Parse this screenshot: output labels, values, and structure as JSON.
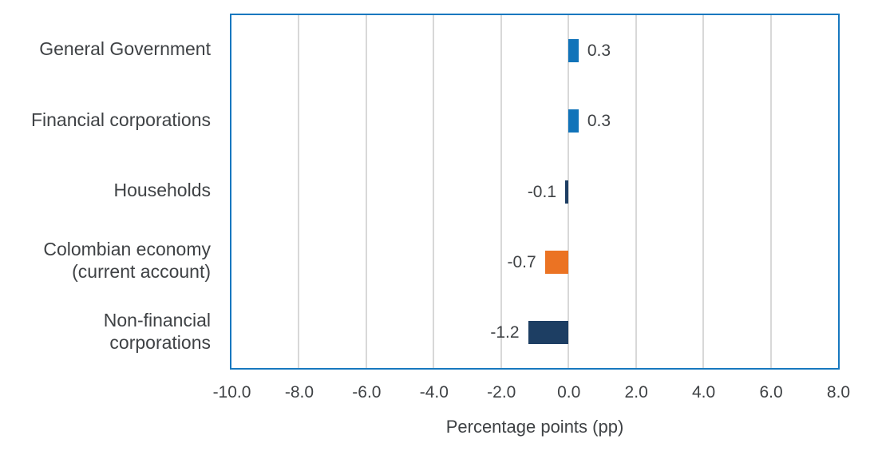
{
  "chart_data": {
    "type": "bar",
    "orientation": "horizontal",
    "title": "",
    "categories": [
      "General Government",
      "Financial corporations",
      "Households",
      "Colombian economy\n(current account)",
      "Non-financial\ncorporations"
    ],
    "values": [
      0.3,
      0.3,
      -0.1,
      -0.7,
      -1.2
    ],
    "value_labels": [
      "0.3",
      "0.3",
      "-0.1",
      "-0.7",
      "-1.2"
    ],
    "bar_colors": [
      "#1073b9",
      "#1073b9",
      "#1d3e63",
      "#eb7323",
      "#1d3e63"
    ],
    "xlabel": "Percentage points (pp)",
    "ylabel": "",
    "xlim": [
      -10.0,
      8.0
    ],
    "xticks": [
      -10.0,
      -8.0,
      -6.0,
      -4.0,
      -2.0,
      0.0,
      2.0,
      4.0,
      6.0,
      8.0
    ],
    "xtick_labels": [
      "-10.0",
      "-8.0",
      "-6.0",
      "-4.0",
      "-2.0",
      "0.0",
      "2.0",
      "4.0",
      "6.0",
      "8.0"
    ],
    "grid": "vertical-only",
    "legend": "none",
    "colors": {
      "plot_border": "#1778bf",
      "gridline": "#d8d8d8",
      "text": "#3f4245",
      "background": "#ffffff"
    }
  }
}
